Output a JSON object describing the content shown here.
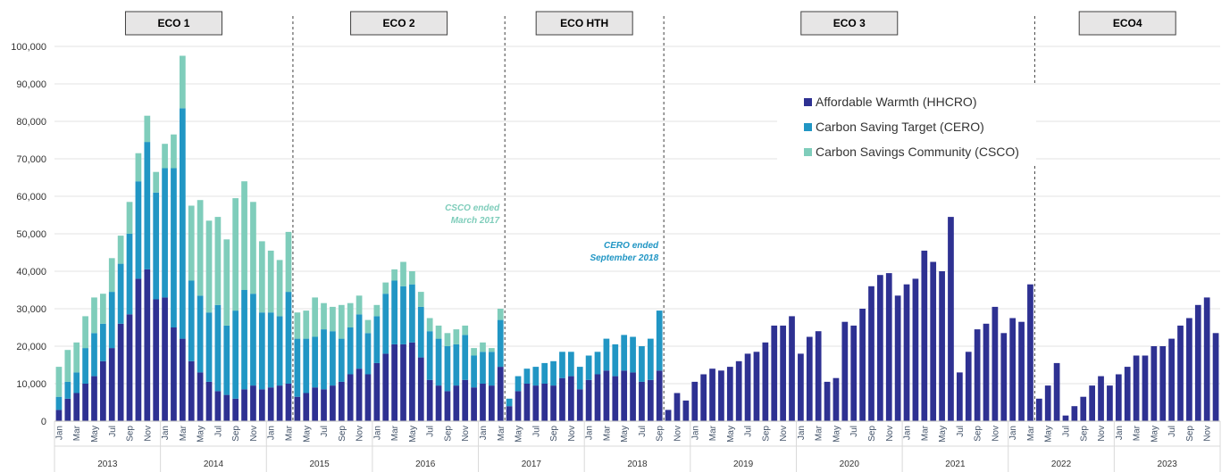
{
  "chart_data": {
    "type": "bar",
    "stacked": true,
    "ylim": [
      0,
      100000
    ],
    "yticks": [
      "0",
      "10,000",
      "20,000",
      "30,000",
      "40,000",
      "50,000",
      "60,000",
      "70,000",
      "80,000",
      "90,000",
      "100,000"
    ],
    "grid": true,
    "legend_position": "upper-right",
    "legend": [
      {
        "name": "Affordable Warmth (HHCRO)",
        "color": "#2E3192"
      },
      {
        "name": "Carbon Saving Target (CERO)",
        "color": "#2196C4"
      },
      {
        "name": "Carbon Savings Community  (CSCO)",
        "color": "#7FCDBB"
      }
    ],
    "months": [
      "Jan",
      "Feb",
      "Mar",
      "Apr",
      "May",
      "Jun",
      "Jul",
      "Aug",
      "Sep",
      "Oct",
      "Nov",
      "Dec"
    ],
    "shown_month_labels": [
      "Jan",
      "Mar",
      "May",
      "Jul",
      "Sep",
      "Nov"
    ],
    "start_year": 2013,
    "years": [
      "2013",
      "2014",
      "2015",
      "2016",
      "2017",
      "2018",
      "2019",
      "2020",
      "2021",
      "2022",
      "2023"
    ],
    "schemes": [
      {
        "label": "ECO 1",
        "from": "2013-01",
        "to": "2015-03"
      },
      {
        "label": "ECO 2",
        "from": "2015-04",
        "to": "2017-03"
      },
      {
        "label": "ECO HTH",
        "from": "2017-04",
        "to": "2018-09"
      },
      {
        "label": "ECO 3",
        "from": "2018-10",
        "to": "2022-03"
      },
      {
        "label": "ECO4",
        "from": "2022-04",
        "to": "2023-12"
      }
    ],
    "annotations": [
      {
        "lines": [
          "CSCO ended",
          "March 2017"
        ],
        "color": "#7FCDBB",
        "at": "2017-03"
      },
      {
        "lines": [
          "CERO ended",
          "September 2018"
        ],
        "color": "#2196C4",
        "at": "2018-09"
      }
    ],
    "series": [
      {
        "name": "Affordable Warmth (HHCRO)",
        "color": "#2E3192",
        "values": [
          3000,
          6000,
          7500,
          10000,
          12000,
          16000,
          19500,
          26000,
          28500,
          38000,
          40500,
          32500,
          33000,
          25000,
          22000,
          16000,
          13000,
          10500,
          8000,
          7000,
          6000,
          8500,
          9500,
          8500,
          9000,
          9500,
          10000,
          6500,
          7500,
          9000,
          8500,
          9500,
          10500,
          12500,
          14000,
          12500,
          15500,
          18000,
          20500,
          20500,
          21000,
          17000,
          11000,
          9500,
          8000,
          9500,
          11000,
          9000,
          10000,
          9500,
          14500,
          4000,
          8000,
          10000,
          9500,
          10000,
          9500,
          11500,
          12000,
          8500,
          11000,
          12500,
          13500,
          12000,
          13500,
          13000,
          10500,
          11000,
          13500,
          3000,
          7500,
          5500,
          10500,
          12500,
          14000,
          13500,
          14500,
          16000,
          18000,
          18500,
          21000,
          25500,
          25500,
          28000,
          18000,
          22500,
          24000,
          10500,
          11500,
          26500,
          25500,
          30000,
          36000,
          39000,
          39500,
          33500,
          36500,
          38000,
          45500,
          42500,
          40000,
          54500,
          13000,
          18500,
          24500,
          26000,
          30500,
          23500,
          27500,
          26500,
          36500,
          6000,
          9500,
          15500,
          1500,
          4000,
          6500,
          9500,
          12000,
          9500,
          12500,
          14500,
          17500,
          17500,
          20000,
          20000,
          22000,
          25500,
          27500,
          31000,
          33000,
          23500
        ]
      },
      {
        "name": "Carbon Saving Target (CERO)",
        "color": "#2196C4",
        "values": [
          3500,
          4500,
          5500,
          9500,
          11500,
          10000,
          15000,
          16000,
          21500,
          26000,
          34000,
          28500,
          34500,
          42500,
          61500,
          21500,
          20500,
          18500,
          23000,
          18500,
          23500,
          26500,
          24500,
          20500,
          20000,
          18500,
          24500,
          15500,
          14500,
          13500,
          16000,
          14500,
          11500,
          12500,
          14500,
          11000,
          12500,
          16000,
          17000,
          15500,
          15500,
          13500,
          13000,
          12500,
          12000,
          11000,
          12000,
          8500,
          8500,
          9000,
          12500,
          2000,
          4000,
          4000,
          5000,
          5500,
          6500,
          7000,
          6500,
          6000,
          6500,
          6000,
          8500,
          8500,
          9500,
          9500,
          9500,
          11000,
          16000,
          0,
          0,
          0,
          0,
          0,
          0,
          0,
          0,
          0,
          0,
          0,
          0,
          0,
          0,
          0,
          0,
          0,
          0,
          0,
          0,
          0,
          0,
          0,
          0,
          0,
          0,
          0,
          0,
          0,
          0,
          0,
          0,
          0,
          0,
          0,
          0,
          0,
          0,
          0,
          0,
          0,
          0,
          0,
          0,
          0,
          0,
          0,
          0,
          0,
          0,
          0,
          0,
          0,
          0,
          0,
          0,
          0,
          0,
          0,
          0,
          0,
          0,
          0
        ]
      },
      {
        "name": "Carbon Savings Community  (CSCO)",
        "color": "#7FCDBB",
        "values": [
          8000,
          8500,
          8000,
          8500,
          9500,
          8000,
          9000,
          7500,
          8500,
          7500,
          7000,
          5500,
          6500,
          9000,
          14000,
          20000,
          25500,
          24500,
          23500,
          23000,
          30000,
          29000,
          24500,
          19000,
          16500,
          15000,
          16000,
          7000,
          7500,
          10500,
          7000,
          6500,
          9000,
          6500,
          5000,
          3500,
          3000,
          3000,
          3000,
          6500,
          3500,
          4000,
          3500,
          3500,
          3500,
          4000,
          2500,
          2000,
          2500,
          1000,
          3000,
          0,
          0,
          0,
          0,
          0,
          0,
          0,
          0,
          0,
          0,
          0,
          0,
          0,
          0,
          0,
          0,
          0,
          0,
          0,
          0,
          0,
          0,
          0,
          0,
          0,
          0,
          0,
          0,
          0,
          0,
          0,
          0,
          0,
          0,
          0,
          0,
          0,
          0,
          0,
          0,
          0,
          0,
          0,
          0,
          0,
          0,
          0,
          0,
          0,
          0,
          0,
          0,
          0,
          0,
          0,
          0,
          0,
          0,
          0,
          0,
          0,
          0,
          0,
          0,
          0,
          0,
          0,
          0,
          0,
          0,
          0,
          0,
          0,
          0,
          0,
          0,
          0,
          0,
          0,
          0,
          0
        ]
      }
    ]
  }
}
